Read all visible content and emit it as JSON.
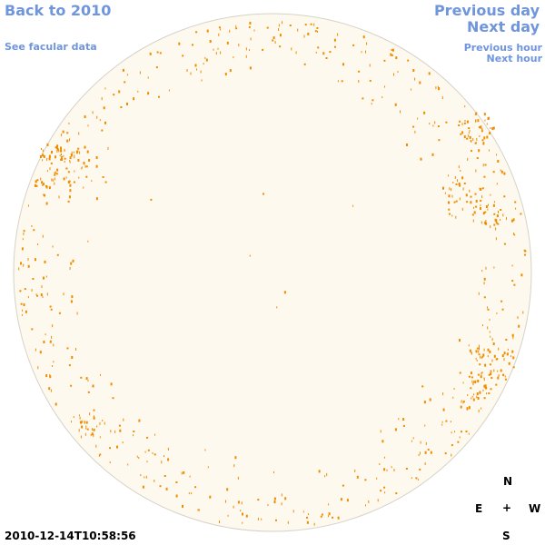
{
  "nav": {
    "back_label": "Back to 2010",
    "facular_label": "See facular data",
    "prev_day_label": "Previous day",
    "next_day_label": "Next day",
    "prev_hour_label": "Previous hour",
    "next_hour_label": "Next hour"
  },
  "compass": {
    "north": "N",
    "east": "E",
    "center": "+",
    "west": "W",
    "south": "S"
  },
  "timestamp": "2010-12-14T10:58:56",
  "colors": {
    "link": "#6f95dd",
    "disk_fill": "#fef9ee",
    "disk_stroke": "#d6d2c8",
    "plage": "#f08c00"
  }
}
